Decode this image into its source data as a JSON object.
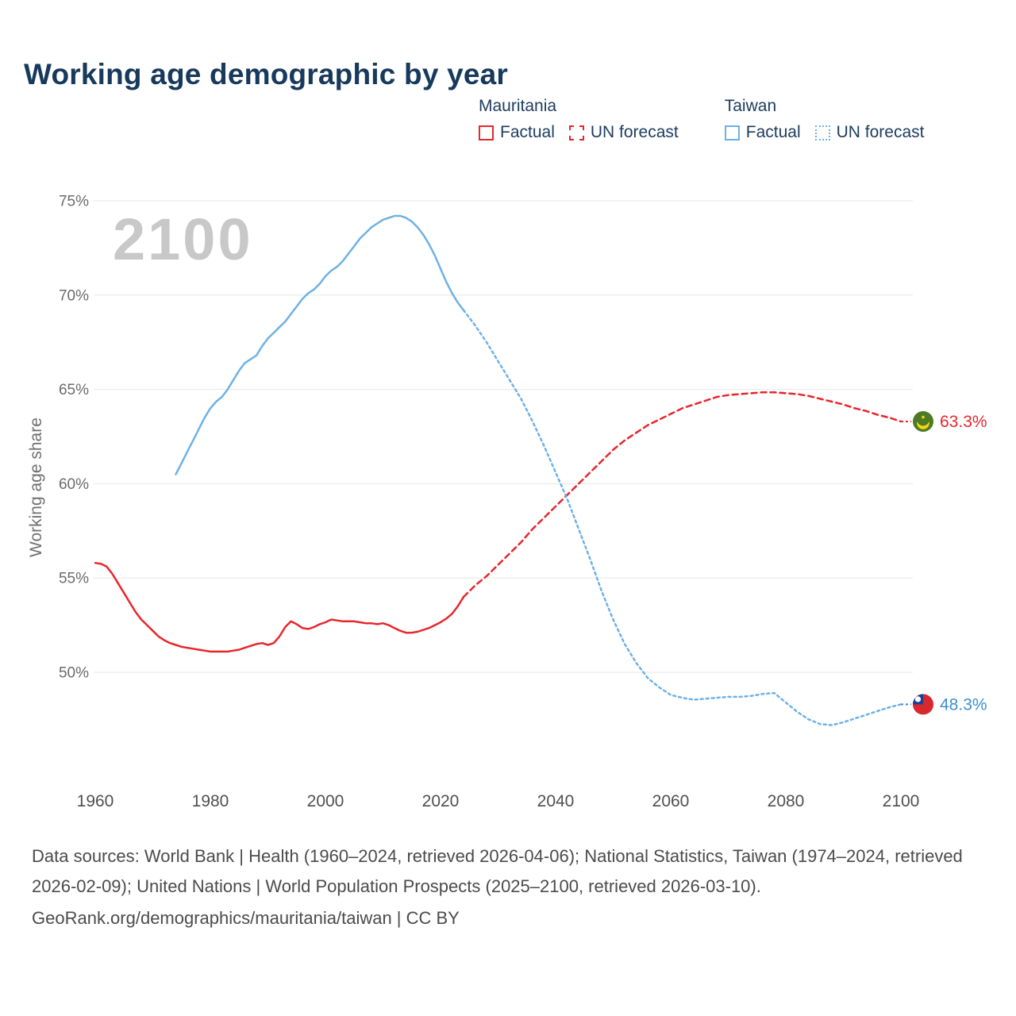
{
  "title": "Working age demographic by year",
  "watermark": "2100",
  "legend": {
    "groups": [
      {
        "country": "Mauritania",
        "items": [
          {
            "label": "Factual",
            "style": "solid",
            "color": "#e8262c"
          },
          {
            "label": "UN forecast",
            "style": "dashed",
            "color": "#e8262c"
          }
        ]
      },
      {
        "country": "Taiwan",
        "items": [
          {
            "label": "Factual",
            "style": "solid",
            "color": "#6fb1e5"
          },
          {
            "label": "UN forecast",
            "style": "dotted",
            "color": "#6fb1e5"
          }
        ]
      }
    ]
  },
  "chart_data": {
    "type": "line",
    "title": "Working age demographic by year",
    "xlabel": "",
    "ylabel": "Working age share",
    "x_range": [
      1960,
      2100
    ],
    "y_range": [
      50,
      75
    ],
    "grid": "horizontal",
    "grid_color": "#e7e7e7",
    "x_ticks": [
      1960,
      1980,
      2000,
      2020,
      2040,
      2060,
      2080,
      2100
    ],
    "y_ticks": [
      {
        "value": 75,
        "label": "75%"
      },
      {
        "value": 70,
        "label": "70%"
      },
      {
        "value": 65,
        "label": "65%"
      },
      {
        "value": 60,
        "label": "60%"
      },
      {
        "value": 55,
        "label": "55%"
      },
      {
        "value": 50,
        "label": "50%"
      }
    ],
    "series": [
      {
        "name": "Mauritania Factual",
        "country": "Mauritania",
        "kind": "factual",
        "color": "#e8262c",
        "dash": "solid",
        "points": [
          [
            1960,
            55.8
          ],
          [
            1961,
            55.75
          ],
          [
            1962,
            55.6
          ],
          [
            1963,
            55.2
          ],
          [
            1964,
            54.7
          ],
          [
            1965,
            54.2
          ],
          [
            1966,
            53.7
          ],
          [
            1967,
            53.2
          ],
          [
            1968,
            52.8
          ],
          [
            1969,
            52.5
          ],
          [
            1970,
            52.2
          ],
          [
            1971,
            51.9
          ],
          [
            1972,
            51.7
          ],
          [
            1973,
            51.55
          ],
          [
            1974,
            51.45
          ],
          [
            1975,
            51.35
          ],
          [
            1976,
            51.3
          ],
          [
            1977,
            51.25
          ],
          [
            1978,
            51.2
          ],
          [
            1979,
            51.15
          ],
          [
            1980,
            51.1
          ],
          [
            1981,
            51.1
          ],
          [
            1982,
            51.1
          ],
          [
            1983,
            51.1
          ],
          [
            1984,
            51.15
          ],
          [
            1985,
            51.2
          ],
          [
            1986,
            51.3
          ],
          [
            1987,
            51.4
          ],
          [
            1988,
            51.5
          ],
          [
            1989,
            51.55
          ],
          [
            1990,
            51.45
          ],
          [
            1991,
            51.55
          ],
          [
            1992,
            51.9
          ],
          [
            1993,
            52.4
          ],
          [
            1994,
            52.7
          ],
          [
            1995,
            52.55
          ],
          [
            1996,
            52.35
          ],
          [
            1997,
            52.3
          ],
          [
            1998,
            52.4
          ],
          [
            1999,
            52.55
          ],
          [
            2000,
            52.65
          ],
          [
            2001,
            52.8
          ],
          [
            2002,
            52.75
          ],
          [
            2003,
            52.7
          ],
          [
            2004,
            52.7
          ],
          [
            2005,
            52.7
          ],
          [
            2006,
            52.65
          ],
          [
            2007,
            52.6
          ],
          [
            2008,
            52.6
          ],
          [
            2009,
            52.55
          ],
          [
            2010,
            52.6
          ],
          [
            2011,
            52.5
          ],
          [
            2012,
            52.35
          ],
          [
            2013,
            52.2
          ],
          [
            2014,
            52.1
          ],
          [
            2015,
            52.1
          ],
          [
            2016,
            52.15
          ],
          [
            2017,
            52.25
          ],
          [
            2018,
            52.35
          ],
          [
            2019,
            52.5
          ],
          [
            2020,
            52.65
          ],
          [
            2021,
            52.85
          ],
          [
            2022,
            53.1
          ],
          [
            2023,
            53.5
          ],
          [
            2024,
            54.0
          ]
        ]
      },
      {
        "name": "Mauritania UN forecast",
        "country": "Mauritania",
        "kind": "forecast",
        "color": "#e8262c",
        "dash": "dashed",
        "points": [
          [
            2024,
            54.0
          ],
          [
            2026,
            54.6
          ],
          [
            2028,
            55.1
          ],
          [
            2030,
            55.7
          ],
          [
            2032,
            56.3
          ],
          [
            2034,
            56.9
          ],
          [
            2036,
            57.6
          ],
          [
            2038,
            58.2
          ],
          [
            2040,
            58.8
          ],
          [
            2042,
            59.4
          ],
          [
            2044,
            60.0
          ],
          [
            2046,
            60.6
          ],
          [
            2048,
            61.2
          ],
          [
            2050,
            61.8
          ],
          [
            2052,
            62.3
          ],
          [
            2054,
            62.7
          ],
          [
            2056,
            63.1
          ],
          [
            2058,
            63.4
          ],
          [
            2060,
            63.7
          ],
          [
            2062,
            64.0
          ],
          [
            2064,
            64.2
          ],
          [
            2066,
            64.4
          ],
          [
            2068,
            64.6
          ],
          [
            2070,
            64.7
          ],
          [
            2072,
            64.75
          ],
          [
            2074,
            64.8
          ],
          [
            2076,
            64.85
          ],
          [
            2078,
            64.85
          ],
          [
            2080,
            64.8
          ],
          [
            2082,
            64.75
          ],
          [
            2084,
            64.65
          ],
          [
            2086,
            64.5
          ],
          [
            2088,
            64.35
          ],
          [
            2090,
            64.2
          ],
          [
            2092,
            64.0
          ],
          [
            2094,
            63.85
          ],
          [
            2096,
            63.65
          ],
          [
            2098,
            63.5
          ],
          [
            2100,
            63.3
          ]
        ]
      },
      {
        "name": "Taiwan Factual",
        "country": "Taiwan",
        "kind": "factual",
        "color": "#6fb1e5",
        "dash": "solid",
        "points": [
          [
            1974,
            60.5
          ],
          [
            1975,
            61.1
          ],
          [
            1976,
            61.7
          ],
          [
            1977,
            62.3
          ],
          [
            1978,
            62.9
          ],
          [
            1979,
            63.5
          ],
          [
            1980,
            64.0
          ],
          [
            1981,
            64.35
          ],
          [
            1982,
            64.6
          ],
          [
            1983,
            65.0
          ],
          [
            1984,
            65.5
          ],
          [
            1985,
            66.0
          ],
          [
            1986,
            66.4
          ],
          [
            1987,
            66.6
          ],
          [
            1988,
            66.8
          ],
          [
            1989,
            67.3
          ],
          [
            1990,
            67.7
          ],
          [
            1991,
            68.0
          ],
          [
            1992,
            68.3
          ],
          [
            1993,
            68.6
          ],
          [
            1994,
            69.0
          ],
          [
            1995,
            69.4
          ],
          [
            1996,
            69.8
          ],
          [
            1997,
            70.1
          ],
          [
            1998,
            70.3
          ],
          [
            1999,
            70.6
          ],
          [
            2000,
            71.0
          ],
          [
            2001,
            71.3
          ],
          [
            2002,
            71.5
          ],
          [
            2003,
            71.8
          ],
          [
            2004,
            72.2
          ],
          [
            2005,
            72.6
          ],
          [
            2006,
            73.0
          ],
          [
            2007,
            73.3
          ],
          [
            2008,
            73.6
          ],
          [
            2009,
            73.8
          ],
          [
            2010,
            74.0
          ],
          [
            2011,
            74.1
          ],
          [
            2012,
            74.2
          ],
          [
            2013,
            74.2
          ],
          [
            2014,
            74.1
          ],
          [
            2015,
            73.9
          ],
          [
            2016,
            73.6
          ],
          [
            2017,
            73.2
          ],
          [
            2018,
            72.7
          ],
          [
            2019,
            72.1
          ],
          [
            2020,
            71.4
          ],
          [
            2021,
            70.7
          ],
          [
            2022,
            70.1
          ],
          [
            2023,
            69.6
          ],
          [
            2024,
            69.2
          ]
        ]
      },
      {
        "name": "Taiwan UN forecast",
        "country": "Taiwan",
        "kind": "forecast",
        "color": "#6fb1e5",
        "dash": "dotted",
        "points": [
          [
            2024,
            69.2
          ],
          [
            2026,
            68.4
          ],
          [
            2028,
            67.5
          ],
          [
            2030,
            66.5
          ],
          [
            2032,
            65.5
          ],
          [
            2034,
            64.5
          ],
          [
            2036,
            63.3
          ],
          [
            2038,
            62.0
          ],
          [
            2040,
            60.6
          ],
          [
            2042,
            59.2
          ],
          [
            2044,
            57.6
          ],
          [
            2046,
            56.0
          ],
          [
            2048,
            54.3
          ],
          [
            2050,
            52.8
          ],
          [
            2052,
            51.5
          ],
          [
            2054,
            50.5
          ],
          [
            2056,
            49.7
          ],
          [
            2058,
            49.2
          ],
          [
            2060,
            48.8
          ],
          [
            2062,
            48.65
          ],
          [
            2064,
            48.55
          ],
          [
            2066,
            48.6
          ],
          [
            2068,
            48.65
          ],
          [
            2070,
            48.7
          ],
          [
            2072,
            48.7
          ],
          [
            2074,
            48.75
          ],
          [
            2076,
            48.85
          ],
          [
            2078,
            48.9
          ],
          [
            2080,
            48.4
          ],
          [
            2082,
            47.9
          ],
          [
            2084,
            47.5
          ],
          [
            2086,
            47.25
          ],
          [
            2088,
            47.2
          ],
          [
            2090,
            47.35
          ],
          [
            2092,
            47.55
          ],
          [
            2094,
            47.75
          ],
          [
            2096,
            47.95
          ],
          [
            2098,
            48.15
          ],
          [
            2100,
            48.3
          ]
        ]
      }
    ],
    "end_labels": [
      {
        "country": "Mauritania",
        "value": 63.3,
        "text": "63.3%",
        "color": "#e8262c",
        "flag": "mauritania"
      },
      {
        "country": "Taiwan",
        "value": 48.3,
        "text": "48.3%",
        "color": "#3e8ed0",
        "flag": "taiwan"
      }
    ]
  },
  "footer": {
    "sources": "Data sources: World Bank | Health (1960–2024, retrieved 2026-04-06); National Statistics, Taiwan (1974–2024, retrieved 2026-02-09); United Nations | World Population Prospects (2025–2100, retrieved 2026-03-10).",
    "attribution": "GeoRank.org/demographics/mauritania/taiwan | CC BY"
  }
}
